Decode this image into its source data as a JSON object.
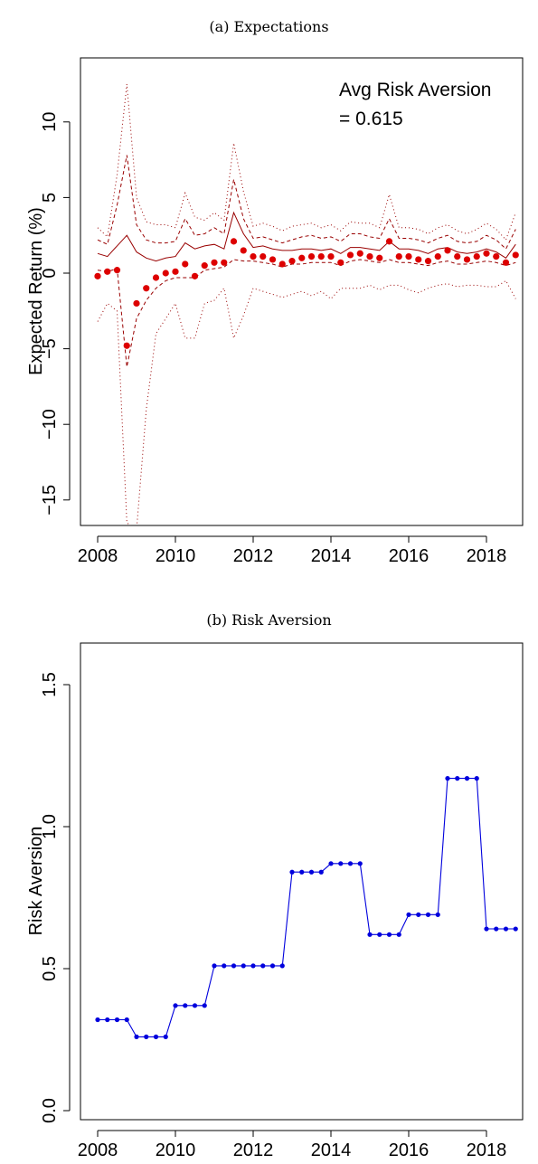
{
  "panels": {
    "a": {
      "title": "(a) Expectations"
    },
    "b": {
      "title": "(b) Risk Aversion"
    }
  },
  "chart_data": [
    {
      "type": "line",
      "title": "(a) Expectations",
      "xlabel": "",
      "ylabel": "Expected Return (%)",
      "xlim": [
        2008,
        2019
      ],
      "ylim": [
        -16,
        14
      ],
      "x_ticks": [
        2008,
        2010,
        2012,
        2014,
        2016,
        2018
      ],
      "y_ticks": [
        -15,
        -10,
        -5,
        0,
        5,
        10
      ],
      "annotation": [
        "Avg Risk Aversion",
        "= 0.615"
      ],
      "colors": {
        "points": "#dd0000",
        "lines": "#990000"
      },
      "x": [
        2008.0,
        2008.25,
        2008.5,
        2008.75,
        2009.0,
        2009.25,
        2009.5,
        2009.75,
        2010.0,
        2010.25,
        2010.5,
        2010.75,
        2011.0,
        2011.25,
        2011.5,
        2011.75,
        2012.0,
        2012.25,
        2012.5,
        2012.75,
        2013.0,
        2013.25,
        2013.5,
        2013.75,
        2014.0,
        2014.25,
        2014.5,
        2014.75,
        2015.0,
        2015.25,
        2015.5,
        2015.75,
        2016.0,
        2016.25,
        2016.5,
        2016.75,
        2017.0,
        2017.25,
        2017.5,
        2017.75,
        2018.0,
        2018.25,
        2018.5,
        2018.75
      ],
      "series": [
        {
          "style": "points",
          "values": [
            -0.2,
            0.1,
            0.2,
            -4.8,
            -2.0,
            -1.0,
            -0.3,
            0.0,
            0.1,
            0.6,
            -0.2,
            0.5,
            0.7,
            0.7,
            2.1,
            1.5,
            1.1,
            1.1,
            0.9,
            0.6,
            0.8,
            1.0,
            1.1,
            1.1,
            1.1,
            0.7,
            1.2,
            1.3,
            1.1,
            1.0,
            2.1,
            1.1,
            1.1,
            0.9,
            0.8,
            1.1,
            1.5,
            1.1,
            0.9,
            1.1,
            1.3,
            1.1,
            0.7,
            1.2
          ]
        },
        {
          "style": "solid",
          "values": [
            1.3,
            1.1,
            1.8,
            2.5,
            1.4,
            1.0,
            0.8,
            1.0,
            1.1,
            2.0,
            1.6,
            1.8,
            1.9,
            1.6,
            4.0,
            2.6,
            1.7,
            1.8,
            1.6,
            1.5,
            1.5,
            1.6,
            1.6,
            1.5,
            1.6,
            1.3,
            1.7,
            1.7,
            1.6,
            1.5,
            2.1,
            1.6,
            1.6,
            1.5,
            1.3,
            1.6,
            1.7,
            1.4,
            1.3,
            1.4,
            1.6,
            1.4,
            1.0,
            1.9
          ]
        },
        {
          "style": "dashed",
          "values": [
            2.2,
            1.9,
            4.5,
            7.8,
            3.2,
            2.2,
            2.0,
            2.0,
            2.1,
            3.6,
            2.5,
            2.6,
            3.0,
            2.6,
            6.2,
            3.6,
            2.3,
            2.4,
            2.2,
            2.0,
            2.2,
            2.4,
            2.5,
            2.3,
            2.4,
            2.1,
            2.6,
            2.6,
            2.4,
            2.3,
            3.6,
            2.3,
            2.3,
            2.2,
            2.0,
            2.3,
            2.5,
            2.1,
            2.0,
            2.1,
            2.5,
            2.2,
            1.6,
            2.9
          ]
        },
        {
          "style": "dashed",
          "values": [
            0.2,
            0.1,
            0.3,
            -6.2,
            -3.0,
            -1.8,
            -1.0,
            -0.5,
            -0.3,
            -0.3,
            -0.3,
            0.2,
            0.3,
            0.4,
            0.9,
            0.8,
            0.8,
            0.7,
            0.6,
            0.4,
            0.6,
            0.6,
            0.7,
            0.7,
            0.7,
            0.5,
            0.8,
            0.9,
            0.8,
            0.7,
            0.9,
            0.7,
            0.7,
            0.6,
            0.5,
            0.7,
            0.8,
            0.6,
            0.6,
            0.7,
            0.8,
            0.7,
            0.5,
            0.7
          ]
        },
        {
          "style": "dotted",
          "values": [
            3.0,
            2.4,
            6.5,
            12.5,
            5.0,
            3.4,
            3.2,
            3.2,
            3.0,
            5.3,
            3.7,
            3.5,
            4.0,
            3.5,
            8.6,
            5.4,
            3.1,
            3.3,
            3.1,
            2.8,
            3.1,
            3.2,
            3.3,
            3.0,
            3.2,
            2.8,
            3.4,
            3.3,
            3.3,
            3.0,
            5.2,
            3.0,
            3.0,
            2.9,
            2.6,
            3.0,
            3.2,
            2.8,
            2.6,
            2.9,
            3.3,
            2.9,
            2.2,
            4.0
          ]
        },
        {
          "style": "dotted",
          "values": [
            -3.2,
            -2.0,
            -2.5,
            -16.5,
            -17.0,
            -9.0,
            -4.0,
            -3.0,
            -2.0,
            -4.3,
            -4.3,
            -2.0,
            -1.8,
            -1.0,
            -4.3,
            -2.8,
            -1.0,
            -1.2,
            -1.4,
            -1.6,
            -1.4,
            -1.2,
            -1.5,
            -1.2,
            -1.7,
            -1.0,
            -1.0,
            -1.0,
            -0.8,
            -1.1,
            -0.8,
            -0.8,
            -1.1,
            -1.3,
            -1.0,
            -0.8,
            -0.7,
            -0.9,
            -0.8,
            -0.8,
            -0.9,
            -0.9,
            -0.5,
            -1.7
          ]
        }
      ]
    },
    {
      "type": "line",
      "title": "(b) Risk Aversion",
      "xlabel": "",
      "ylabel": "Risk Aversion",
      "xlim": [
        2008,
        2019
      ],
      "ylim": [
        0.0,
        1.6
      ],
      "x_ticks": [
        2008,
        2010,
        2012,
        2014,
        2016,
        2018
      ],
      "y_ticks": [
        0.0,
        0.5,
        1.0,
        1.5
      ],
      "y_tick_labels": [
        "0.0",
        "0.5",
        "1.0",
        "1.5"
      ],
      "colors": {
        "line": "#0000dd"
      },
      "x": [
        2008.0,
        2008.25,
        2008.5,
        2008.75,
        2009.0,
        2009.25,
        2009.5,
        2009.75,
        2010.0,
        2010.25,
        2010.5,
        2010.75,
        2011.0,
        2011.25,
        2011.5,
        2011.75,
        2012.0,
        2012.25,
        2012.5,
        2012.75,
        2013.0,
        2013.25,
        2013.5,
        2013.75,
        2014.0,
        2014.25,
        2014.5,
        2014.75,
        2015.0,
        2015.25,
        2015.5,
        2015.75,
        2016.0,
        2016.25,
        2016.5,
        2016.75,
        2017.0,
        2017.25,
        2017.5,
        2017.75,
        2018.0,
        2018.25,
        2018.5,
        2018.75
      ],
      "series": [
        {
          "values": [
            0.32,
            0.32,
            0.32,
            0.32,
            0.26,
            0.26,
            0.26,
            0.26,
            0.37,
            0.37,
            0.37,
            0.37,
            0.51,
            0.51,
            0.51,
            0.51,
            0.51,
            0.51,
            0.51,
            0.51,
            0.84,
            0.84,
            0.84,
            0.84,
            0.87,
            0.87,
            0.87,
            0.87,
            0.62,
            0.62,
            0.62,
            0.62,
            0.69,
            0.69,
            0.69,
            0.69,
            1.17,
            1.17,
            1.17,
            1.17,
            0.64,
            0.64,
            0.64,
            0.64
          ]
        }
      ]
    }
  ]
}
